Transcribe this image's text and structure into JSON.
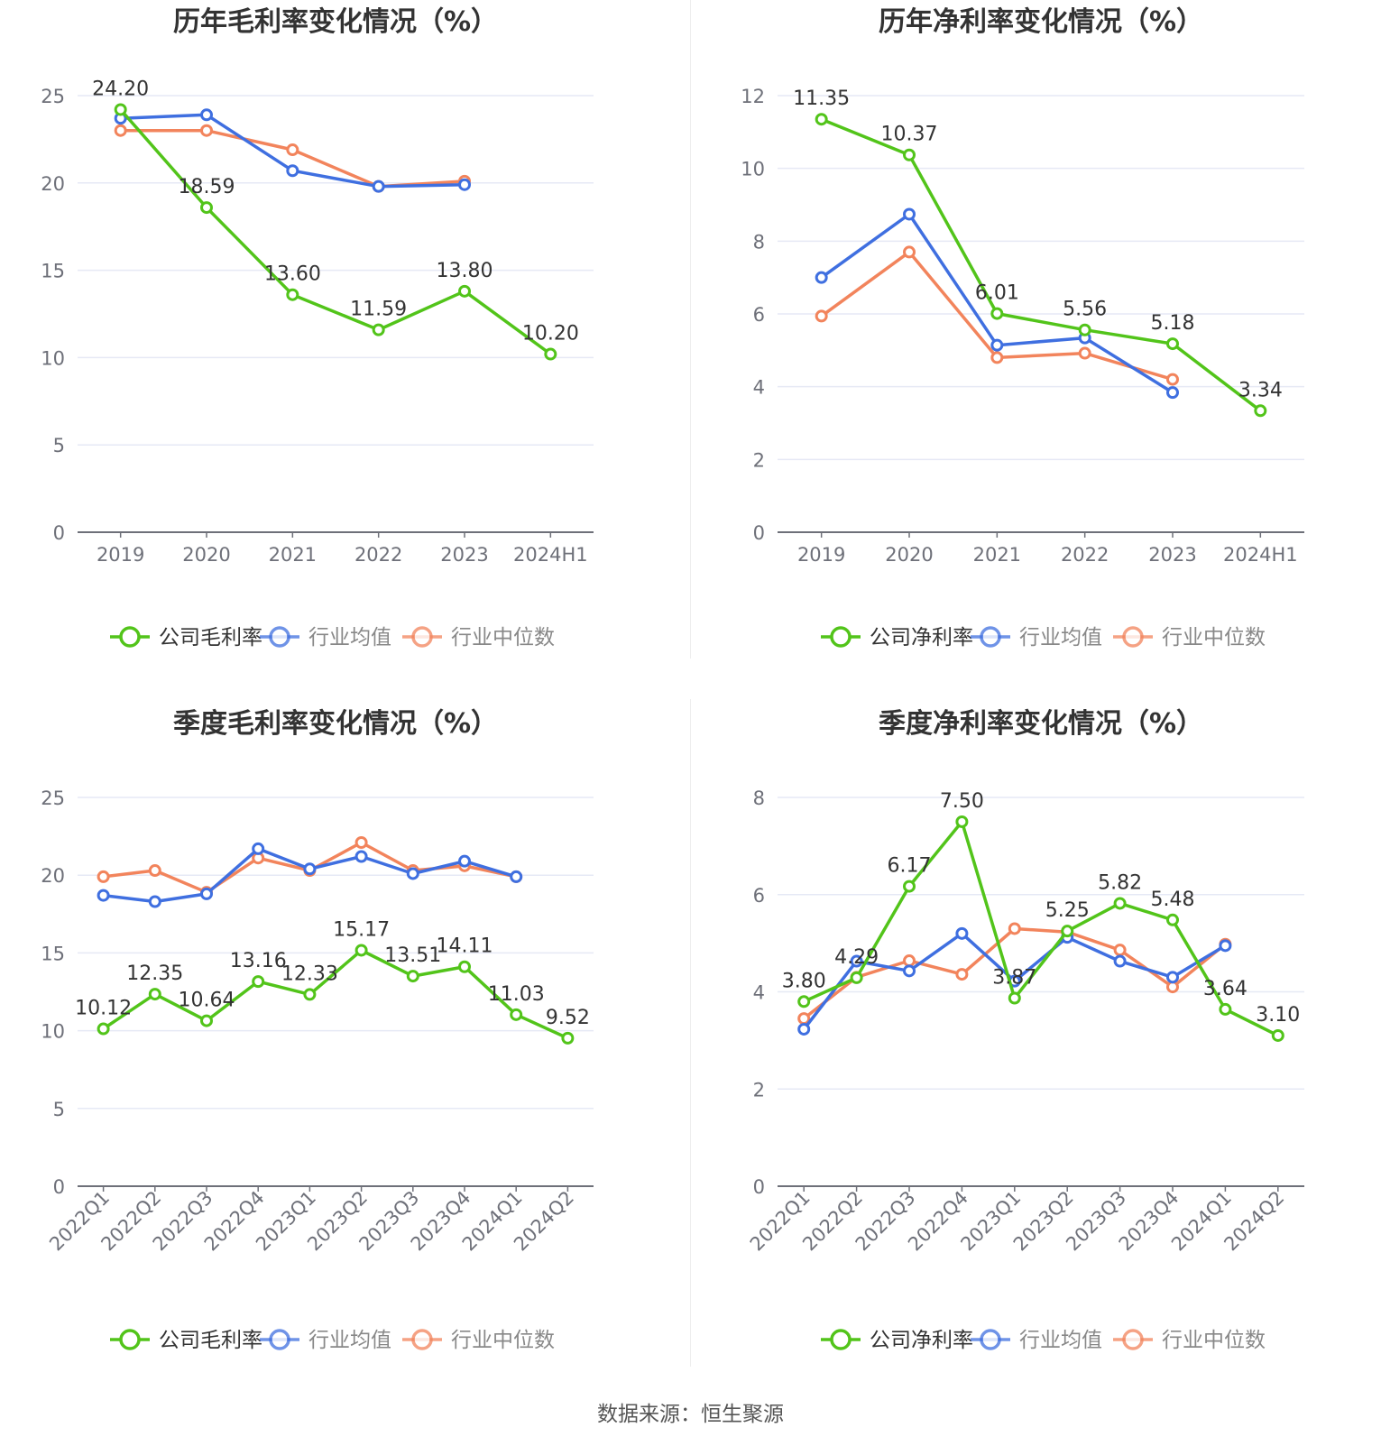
{
  "colors": {
    "company": "#52c41a",
    "avg": "#3f6fe0",
    "median": "#f2845c",
    "grid": "#e6e9f5",
    "axis": "#6e7079",
    "tick_text": "#6e7079",
    "label_text": "#333333",
    "title": "#333333",
    "legend_text": "#333333",
    "legend_text_inactive": "#888888"
  },
  "source_text": "数据来源：恒生聚源",
  "chart_data": [
    {
      "id": "annual-gross",
      "type": "line",
      "title": "历年毛利率变化情况（%）",
      "categories": [
        "2019",
        "2020",
        "2021",
        "2022",
        "2023",
        "2024H1"
      ],
      "ylim": [
        0,
        25
      ],
      "yticks": [
        0,
        5,
        10,
        15,
        20,
        25
      ],
      "grid": true,
      "legend_position": "bottom",
      "rotate_x_labels": false,
      "series": [
        {
          "key": "company",
          "name": "公司毛利率",
          "values": [
            24.2,
            18.59,
            13.6,
            11.59,
            13.8,
            10.2
          ],
          "labels": [
            "24.20",
            "18.59",
            "13.60",
            "11.59",
            "13.80",
            "10.20"
          ]
        },
        {
          "key": "avg",
          "name": "行业均值",
          "values": [
            23.7,
            23.9,
            20.7,
            19.8,
            19.9,
            null
          ]
        },
        {
          "key": "median",
          "name": "行业中位数",
          "values": [
            23.0,
            23.0,
            21.9,
            19.8,
            20.1,
            null
          ]
        }
      ]
    },
    {
      "id": "annual-net",
      "type": "line",
      "title": "历年净利率变化情况（%）",
      "categories": [
        "2019",
        "2020",
        "2021",
        "2022",
        "2023",
        "2024H1"
      ],
      "ylim": [
        0,
        12
      ],
      "yticks": [
        0,
        2,
        4,
        6,
        8,
        10,
        12
      ],
      "grid": true,
      "legend_position": "bottom",
      "rotate_x_labels": false,
      "series": [
        {
          "key": "company",
          "name": "公司净利率",
          "values": [
            11.35,
            10.37,
            6.01,
            5.56,
            5.18,
            3.34
          ],
          "labels": [
            "11.35",
            "10.37",
            "6.01",
            "5.56",
            "5.18",
            "3.34"
          ]
        },
        {
          "key": "avg",
          "name": "行业均值",
          "values": [
            7.0,
            8.74,
            5.14,
            5.34,
            3.84,
            null
          ]
        },
        {
          "key": "median",
          "name": "行业中位数",
          "values": [
            5.94,
            7.7,
            4.8,
            4.92,
            4.2,
            null
          ]
        }
      ]
    },
    {
      "id": "quarterly-gross",
      "type": "line",
      "title": "季度毛利率变化情况（%）",
      "categories": [
        "2022Q1",
        "2022Q2",
        "2022Q3",
        "2022Q4",
        "2023Q1",
        "2023Q2",
        "2023Q3",
        "2023Q4",
        "2024Q1",
        "2024Q2"
      ],
      "ylim": [
        0,
        25
      ],
      "yticks": [
        0,
        5,
        10,
        15,
        20,
        25
      ],
      "grid": true,
      "legend_position": "bottom",
      "rotate_x_labels": true,
      "series": [
        {
          "key": "company",
          "name": "公司毛利率",
          "values": [
            10.12,
            12.35,
            10.64,
            13.16,
            12.33,
            15.17,
            13.51,
            14.11,
            11.03,
            9.52
          ],
          "labels": [
            "10.12",
            "12.35",
            "10.64",
            "13.16",
            "12.33",
            "15.17",
            "13.51",
            "14.11",
            "11.03",
            "9.52"
          ]
        },
        {
          "key": "avg",
          "name": "行业均值",
          "values": [
            18.7,
            18.3,
            18.8,
            21.7,
            20.4,
            21.2,
            20.1,
            20.9,
            19.9,
            null
          ]
        },
        {
          "key": "median",
          "name": "行业中位数",
          "values": [
            19.9,
            20.3,
            18.9,
            21.1,
            20.3,
            22.1,
            20.3,
            20.6,
            19.9,
            null
          ]
        }
      ]
    },
    {
      "id": "quarterly-net",
      "type": "line",
      "title": "季度净利率变化情况（%）",
      "categories": [
        "2022Q1",
        "2022Q2",
        "2022Q3",
        "2022Q4",
        "2023Q1",
        "2023Q2",
        "2023Q3",
        "2023Q4",
        "2024Q1",
        "2024Q2"
      ],
      "ylim": [
        0,
        8
      ],
      "yticks": [
        0,
        2,
        4,
        6,
        8
      ],
      "grid": true,
      "legend_position": "bottom",
      "rotate_x_labels": true,
      "series": [
        {
          "key": "company",
          "name": "公司净利率",
          "values": [
            3.8,
            4.29,
            6.17,
            7.5,
            3.87,
            5.25,
            5.82,
            5.48,
            3.64,
            3.1
          ],
          "labels": [
            "3.80",
            "4.29",
            "6.17",
            "7.50",
            "3.87",
            "5.25",
            "5.82",
            "5.48",
            "3.64",
            "3.10"
          ]
        },
        {
          "key": "avg",
          "name": "行业均值",
          "values": [
            3.23,
            4.63,
            4.43,
            5.2,
            4.22,
            5.12,
            4.63,
            4.3,
            4.95,
            null
          ]
        },
        {
          "key": "median",
          "name": "行业中位数",
          "values": [
            3.45,
            4.3,
            4.64,
            4.36,
            5.3,
            5.23,
            4.86,
            4.1,
            4.98,
            null
          ]
        }
      ]
    }
  ]
}
